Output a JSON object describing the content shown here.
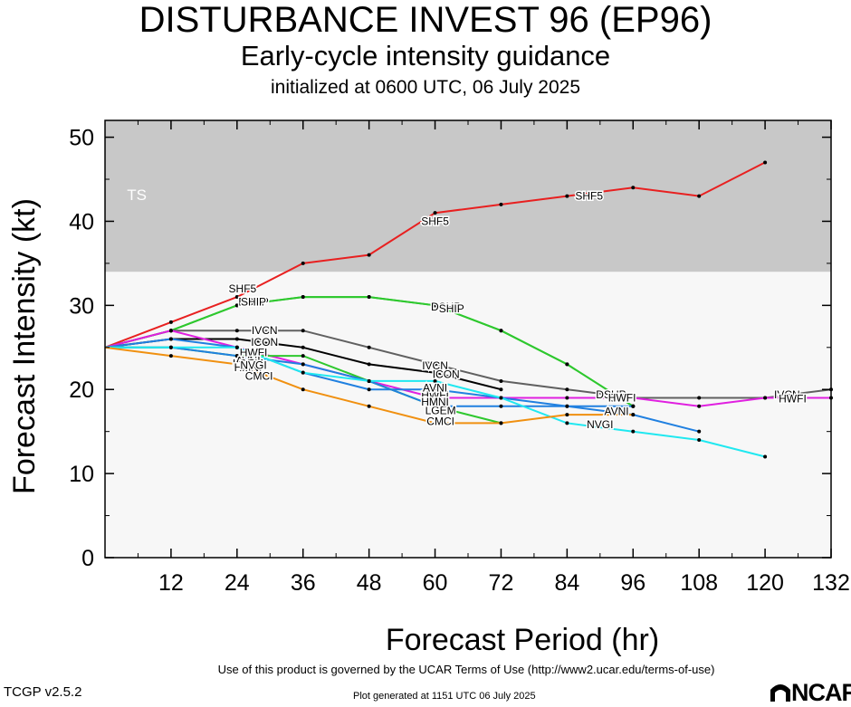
{
  "title": "DISTURBANCE INVEST 96 (EP96)",
  "subtitle": "Early-cycle intensity guidance",
  "init_line": "initialized at 0600 UTC, 06 July 2025",
  "footer": {
    "terms": "Use of this product is governed by the UCAR Terms of Use (http://www2.ucar.edu/terms-of-use)",
    "version": "TCGP v2.5.2",
    "generated": "Plot generated at 1151 UTC   06 July 2025",
    "logo": "NCAR"
  },
  "chart_data": {
    "type": "line",
    "xlabel": "Forecast Period (hr)",
    "ylabel": "Forecast Intensity (kt)",
    "xlim": [
      0,
      132
    ],
    "ylim": [
      0,
      52
    ],
    "xticks": [
      12,
      24,
      36,
      48,
      60,
      72,
      84,
      96,
      108,
      120,
      132
    ],
    "yticks": [
      0,
      10,
      20,
      30,
      40,
      50
    ],
    "grid": false,
    "bands": [
      {
        "label": "TS",
        "from": 34,
        "to": 52,
        "color": "#c8c8c8"
      }
    ],
    "background": "#f7f7f7",
    "series": [
      {
        "name": "SHF5",
        "color": "#e82020",
        "x": [
          0,
          12,
          24,
          36,
          48,
          60,
          72,
          84,
          96,
          108,
          120
        ],
        "y": [
          25,
          28,
          31,
          35,
          36,
          41,
          42,
          43,
          44,
          43,
          47
        ],
        "labels": [
          [
            25,
            32
          ],
          [
            60,
            40
          ],
          [
            88,
            43
          ]
        ]
      },
      {
        "name": "DSHP",
        "color": "#2ec82e",
        "x": [
          0,
          12,
          24,
          36,
          48,
          60,
          72,
          84,
          96
        ],
        "y": [
          25,
          27,
          30,
          31,
          31,
          30,
          27,
          23,
          18
        ],
        "labels": [
          [
            27,
            30.4
          ],
          [
            62,
            29.8
          ],
          [
            92,
            19.4
          ]
        ]
      },
      {
        "name": "SHIP",
        "color": "#2ec82e",
        "x": [
          0,
          12,
          24,
          36,
          48,
          60,
          72,
          84,
          96
        ],
        "y": [
          25,
          27,
          30,
          31,
          31,
          30,
          27,
          23,
          18
        ],
        "labels": [
          [
            27,
            30.4
          ],
          [
            63,
            29.6
          ],
          [
            94,
            19.0
          ]
        ]
      },
      {
        "name": "IVCN",
        "color": "#606060",
        "x": [
          0,
          12,
          24,
          36,
          48,
          60,
          72,
          84,
          96,
          108,
          120,
          132
        ],
        "y": [
          25,
          27,
          27,
          27,
          25,
          23,
          21,
          20,
          19,
          19,
          19,
          20
        ],
        "labels": [
          [
            29,
            27
          ],
          [
            60,
            22.8
          ],
          [
            124,
            19.4
          ]
        ]
      },
      {
        "name": "ICON",
        "color": "#000000",
        "x": [
          0,
          12,
          24,
          36,
          48,
          60,
          72
        ],
        "y": [
          25,
          26,
          26,
          25,
          23,
          22,
          20
        ],
        "labels": [
          [
            29,
            25.6
          ],
          [
            62,
            21.8
          ]
        ]
      },
      {
        "name": "HWFI",
        "color": "#e020e0",
        "x": [
          0,
          12,
          24,
          36,
          48,
          60,
          72,
          84,
          96,
          108,
          120,
          132
        ],
        "y": [
          25,
          27,
          25,
          23,
          21,
          19,
          19,
          19,
          19,
          18,
          19,
          19
        ],
        "labels": [
          [
            27,
            24.4
          ],
          [
            60,
            19.3
          ],
          [
            94,
            19
          ],
          [
            125,
            18.9
          ]
        ]
      },
      {
        "name": "AVNI",
        "color": "#2080e0",
        "x": [
          0,
          12,
          24,
          36,
          48,
          60,
          72,
          84,
          96,
          108
        ],
        "y": [
          25,
          26,
          25,
          22,
          20,
          20,
          19,
          18,
          17,
          15
        ],
        "labels": [
          [
            26,
            23.4
          ],
          [
            60,
            20.2
          ],
          [
            93,
            17.4
          ]
        ]
      },
      {
        "name": "LGEM",
        "color": "#2ec82e",
        "x": [
          0,
          12,
          24,
          36,
          48,
          60,
          72
        ],
        "y": [
          25,
          25,
          24,
          24,
          21,
          18,
          16
        ],
        "labels": [
          [
            26,
            23.1
          ],
          [
            61,
            17.5
          ]
        ]
      },
      {
        "name": "HMNI",
        "color": "#2080e0",
        "x": [
          0,
          12,
          24,
          36,
          48,
          60,
          72,
          84,
          96
        ],
        "y": [
          25,
          25,
          24,
          23,
          21,
          18,
          18,
          18,
          18
        ],
        "labels": [
          [
            26,
            22.6
          ],
          [
            60,
            18.5
          ]
        ]
      },
      {
        "name": "NVGI",
        "color": "#20e8f0",
        "x": [
          0,
          12,
          24,
          36,
          48,
          60,
          72,
          84,
          96,
          108,
          120
        ],
        "y": [
          25,
          25,
          25,
          22,
          21,
          21,
          19,
          16,
          15,
          14,
          12
        ],
        "labels": [
          [
            27,
            22.9
          ],
          [
            90,
            15.8
          ]
        ]
      },
      {
        "name": "CMCI",
        "color": "#f09010",
        "x": [
          0,
          12,
          24,
          36,
          48,
          60,
          72,
          84,
          96
        ],
        "y": [
          25,
          24,
          23,
          20,
          18,
          16,
          16,
          17,
          17
        ],
        "labels": [
          [
            28,
            21.6
          ],
          [
            61,
            16.2
          ]
        ]
      }
    ]
  }
}
